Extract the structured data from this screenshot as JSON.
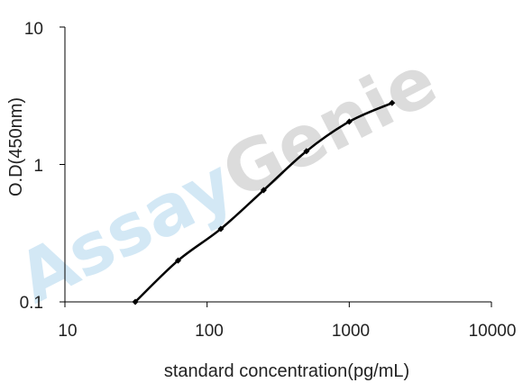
{
  "chart_data": {
    "type": "line",
    "title": "",
    "xlabel": "standard concentration(pg/mL)",
    "ylabel": "O.D(450nm)",
    "x_scale": "log",
    "y_scale": "log",
    "xlim": [
      10,
      10000
    ],
    "ylim": [
      0.1,
      10
    ],
    "x_ticks": [
      "10",
      "100",
      "1000",
      "10000"
    ],
    "y_ticks": [
      "0.1",
      "1",
      "10"
    ],
    "grid": false,
    "legend": "none",
    "series": [
      {
        "x": [
          31.25,
          62.5,
          125,
          250,
          500,
          1000,
          2000
        ],
        "y": [
          0.1,
          0.2,
          0.34,
          0.65,
          1.25,
          2.05,
          2.8
        ],
        "color": "#000000",
        "marker": "diamond"
      }
    ],
    "watermark": {
      "part1": "Assay",
      "part2": "Genie",
      "color1": "#cfe6f4",
      "color2": "#d9d9d9"
    }
  }
}
